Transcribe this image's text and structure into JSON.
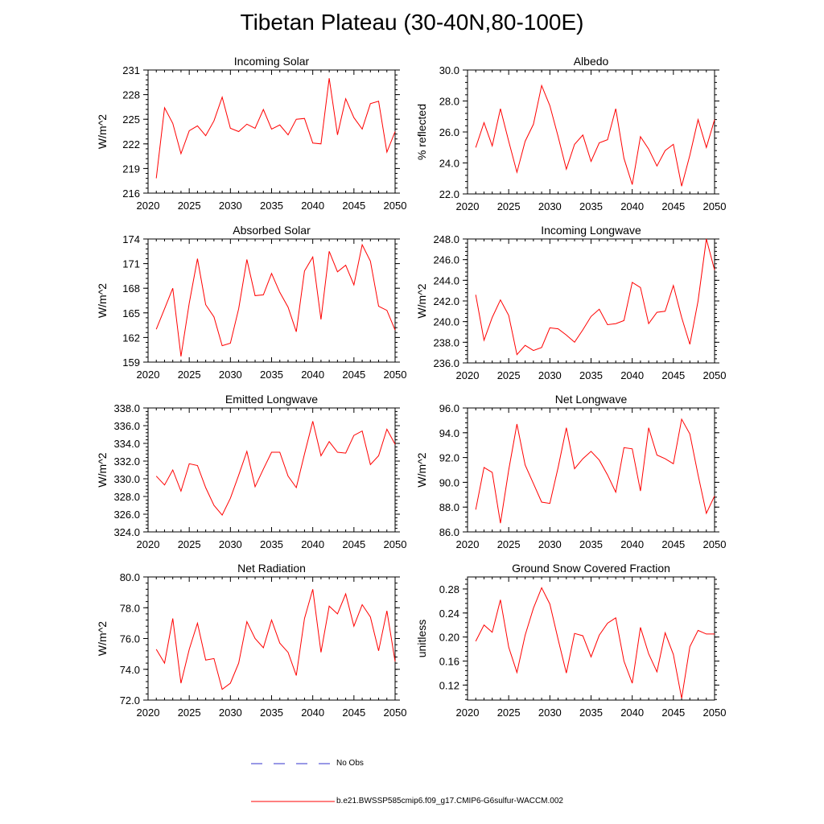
{
  "figure": {
    "title": "Tibetan Plateau (30-40N,80-100E)",
    "legend": [
      {
        "label": "No Obs",
        "color": "#3333cc",
        "style": "dashed"
      },
      {
        "label": "b.e21.BWSSP585cmip6.f09_g17.CMIP6-G6sulfur-WACCM.002",
        "color": "#ff0000",
        "style": "solid"
      }
    ]
  },
  "chart_data": [
    {
      "type": "line",
      "title": "Incoming Solar",
      "ylabel": "W/m^2",
      "xlim": [
        2020,
        2050
      ],
      "ylim": [
        216,
        231
      ],
      "yticks": [
        "216",
        "219",
        "222",
        "225",
        "228",
        "231"
      ],
      "xticks": [
        "2020",
        "2025",
        "2030",
        "2035",
        "2040",
        "2045",
        "2050"
      ],
      "x": [
        2021,
        2022,
        2023,
        2024,
        2025,
        2026,
        2027,
        2028,
        2029,
        2030,
        2031,
        2032,
        2033,
        2034,
        2035,
        2036,
        2037,
        2038,
        2039,
        2040,
        2041,
        2042,
        2043,
        2044,
        2045,
        2046,
        2047,
        2048,
        2049,
        2050
      ],
      "series": [
        {
          "color": "#ff0000",
          "values": [
            217.8,
            226.4,
            224.5,
            220.8,
            223.6,
            224.2,
            223.0,
            224.8,
            227.7,
            223.9,
            223.5,
            224.4,
            223.9,
            226.2,
            223.8,
            224.3,
            223.1,
            225.0,
            225.1,
            222.1,
            222.0,
            230.0,
            223.1,
            227.5,
            225.2,
            223.8,
            226.9,
            227.2,
            221.0,
            223.5
          ],
          "color_hex": "#ff0000"
        }
      ]
    },
    {
      "type": "line",
      "title": "Albedo",
      "ylabel": "% reflected",
      "xlim": [
        2020,
        2050
      ],
      "ylim": [
        22.0,
        30.0
      ],
      "yticks": [
        "22.0",
        "24.0",
        "26.0",
        "28.0",
        "30.0"
      ],
      "xticks": [
        "2020",
        "2025",
        "2030",
        "2035",
        "2040",
        "2045",
        "2050"
      ],
      "x": [
        2021,
        2022,
        2023,
        2024,
        2025,
        2026,
        2027,
        2028,
        2029,
        2030,
        2031,
        2032,
        2033,
        2034,
        2035,
        2036,
        2037,
        2038,
        2039,
        2040,
        2041,
        2042,
        2043,
        2044,
        2045,
        2046,
        2047,
        2048,
        2049,
        2050
      ],
      "series": [
        {
          "color": "#ff0000",
          "values": [
            25.0,
            26.6,
            25.1,
            27.5,
            25.4,
            23.4,
            25.4,
            26.5,
            29.0,
            27.7,
            25.7,
            23.6,
            25.2,
            25.8,
            24.1,
            25.3,
            25.5,
            27.5,
            24.3,
            22.6,
            25.7,
            24.9,
            23.8,
            24.8,
            25.2,
            22.5,
            24.5,
            26.8,
            25.0,
            26.8
          ]
        }
      ]
    },
    {
      "type": "line",
      "title": "Absorbed Solar",
      "ylabel": "W/m^2",
      "xlim": [
        2020,
        2050
      ],
      "ylim": [
        159,
        174
      ],
      "yticks": [
        "159",
        "162",
        "165",
        "168",
        "171",
        "174"
      ],
      "xticks": [
        "2020",
        "2025",
        "2030",
        "2035",
        "2040",
        "2045",
        "2050"
      ],
      "x": [
        2021,
        2022,
        2023,
        2024,
        2025,
        2026,
        2027,
        2028,
        2029,
        2030,
        2031,
        2032,
        2033,
        2034,
        2035,
        2036,
        2037,
        2038,
        2039,
        2040,
        2041,
        2042,
        2043,
        2044,
        2045,
        2046,
        2047,
        2048,
        2049,
        2050
      ],
      "series": [
        {
          "color": "#ff0000",
          "values": [
            163.0,
            165.5,
            168.0,
            159.7,
            166.2,
            171.6,
            166.0,
            164.5,
            161.0,
            161.3,
            165.5,
            171.5,
            167.1,
            167.2,
            169.8,
            167.5,
            165.7,
            162.7,
            170.1,
            171.8,
            164.2,
            172.5,
            170.0,
            170.8,
            168.4,
            173.3,
            171.3,
            165.8,
            165.3,
            162.9
          ]
        }
      ]
    },
    {
      "type": "line",
      "title": "Incoming Longwave",
      "ylabel": "W/m^2",
      "xlim": [
        2020,
        2050
      ],
      "ylim": [
        236.0,
        248.0
      ],
      "yticks": [
        "236.0",
        "238.0",
        "240.0",
        "242.0",
        "244.0",
        "246.0",
        "248.0"
      ],
      "xticks": [
        "2020",
        "2025",
        "2030",
        "2035",
        "2040",
        "2045",
        "2050"
      ],
      "x": [
        2021,
        2022,
        2023,
        2024,
        2025,
        2026,
        2027,
        2028,
        2029,
        2030,
        2031,
        2032,
        2033,
        2034,
        2035,
        2036,
        2037,
        2038,
        2039,
        2040,
        2041,
        2042,
        2043,
        2044,
        2045,
        2046,
        2047,
        2048,
        2049,
        2050
      ],
      "series": [
        {
          "color": "#ff0000",
          "values": [
            242.6,
            238.2,
            240.4,
            242.1,
            240.6,
            236.8,
            237.7,
            237.2,
            237.5,
            239.4,
            239.3,
            238.7,
            238.0,
            239.2,
            240.5,
            241.2,
            239.7,
            239.8,
            240.1,
            243.8,
            243.3,
            239.8,
            240.9,
            241.0,
            243.5,
            240.4,
            237.8,
            242.0,
            248.0,
            245.0
          ]
        }
      ]
    },
    {
      "type": "line",
      "title": "Emitted Longwave",
      "ylabel": "W/m^2",
      "xlim": [
        2020,
        2050
      ],
      "ylim": [
        324.0,
        338.0
      ],
      "yticks": [
        "324.0",
        "326.0",
        "328.0",
        "330.0",
        "332.0",
        "334.0",
        "336.0",
        "338.0"
      ],
      "xticks": [
        "2020",
        "2025",
        "2030",
        "2035",
        "2040",
        "2045",
        "2050"
      ],
      "x": [
        2021,
        2022,
        2023,
        2024,
        2025,
        2026,
        2027,
        2028,
        2029,
        2030,
        2031,
        2032,
        2033,
        2034,
        2035,
        2036,
        2037,
        2038,
        2039,
        2040,
        2041,
        2042,
        2043,
        2044,
        2045,
        2046,
        2047,
        2048,
        2049,
        2050
      ],
      "series": [
        {
          "color": "#ff0000",
          "values": [
            330.3,
            329.3,
            331.0,
            328.6,
            331.7,
            331.5,
            329.0,
            327.0,
            325.9,
            327.8,
            330.4,
            333.1,
            329.1,
            331.1,
            333.0,
            333.0,
            330.3,
            329.0,
            332.8,
            336.5,
            332.6,
            334.2,
            333.0,
            332.9,
            334.9,
            335.4,
            331.6,
            332.6,
            335.6,
            333.9
          ]
        }
      ]
    },
    {
      "type": "line",
      "title": "Net Longwave",
      "ylabel": "W/m^2",
      "xlim": [
        2020,
        2050
      ],
      "ylim": [
        86.0,
        96.0
      ],
      "yticks": [
        "86.0",
        "88.0",
        "90.0",
        "92.0",
        "94.0",
        "96.0"
      ],
      "xticks": [
        "2020",
        "2025",
        "2030",
        "2035",
        "2040",
        "2045",
        "2050"
      ],
      "x": [
        2021,
        2022,
        2023,
        2024,
        2025,
        2026,
        2027,
        2028,
        2029,
        2030,
        2031,
        2032,
        2033,
        2034,
        2035,
        2036,
        2037,
        2038,
        2039,
        2040,
        2041,
        2042,
        2043,
        2044,
        2045,
        2046,
        2047,
        2048,
        2049,
        2050
      ],
      "series": [
        {
          "color": "#ff0000",
          "values": [
            87.8,
            91.2,
            90.8,
            86.7,
            91.0,
            94.7,
            91.4,
            89.9,
            88.4,
            88.3,
            91.2,
            94.4,
            91.1,
            91.9,
            92.5,
            91.8,
            90.6,
            89.2,
            92.8,
            92.7,
            89.3,
            94.4,
            92.2,
            91.9,
            91.5,
            95.1,
            93.9,
            90.6,
            87.5,
            88.9
          ]
        }
      ]
    },
    {
      "type": "line",
      "title": "Net Radiation",
      "ylabel": "W/m^2",
      "xlim": [
        2020,
        2050
      ],
      "ylim": [
        72.0,
        80.0
      ],
      "yticks": [
        "72.0",
        "74.0",
        "76.0",
        "78.0",
        "80.0"
      ],
      "xticks": [
        "2020",
        "2025",
        "2030",
        "2035",
        "2040",
        "2045",
        "2050"
      ],
      "x": [
        2021,
        2022,
        2023,
        2024,
        2025,
        2026,
        2027,
        2028,
        2029,
        2030,
        2031,
        2032,
        2033,
        2034,
        2035,
        2036,
        2037,
        2038,
        2039,
        2040,
        2041,
        2042,
        2043,
        2044,
        2045,
        2046,
        2047,
        2048,
        2049,
        2050
      ],
      "series": [
        {
          "color": "#ff0000",
          "values": [
            75.3,
            74.4,
            77.3,
            73.1,
            75.3,
            77.0,
            74.6,
            74.7,
            72.7,
            73.1,
            74.4,
            77.1,
            76.0,
            75.4,
            77.2,
            75.7,
            75.1,
            73.6,
            77.3,
            79.2,
            75.1,
            78.1,
            77.6,
            78.9,
            76.8,
            78.2,
            77.4,
            75.2,
            77.8,
            74.5
          ]
        }
      ]
    },
    {
      "type": "line",
      "title": "Ground Snow Covered Fraction",
      "ylabel": "unitless",
      "xlim": [
        2020,
        2050
      ],
      "ylim": [
        0.095,
        0.3
      ],
      "yticks": [
        "0.12",
        "0.16",
        "0.20",
        "0.24",
        "0.28"
      ],
      "ytick_values": [
        0.12,
        0.16,
        0.2,
        0.24,
        0.28
      ],
      "xticks": [
        "2020",
        "2025",
        "2030",
        "2035",
        "2040",
        "2045",
        "2050"
      ],
      "x": [
        2021,
        2022,
        2023,
        2024,
        2025,
        2026,
        2027,
        2028,
        2029,
        2030,
        2031,
        2032,
        2033,
        2034,
        2035,
        2036,
        2037,
        2038,
        2039,
        2040,
        2041,
        2042,
        2043,
        2044,
        2045,
        2046,
        2047,
        2048,
        2049,
        2050
      ],
      "series": [
        {
          "color": "#ff0000",
          "values": [
            0.193,
            0.22,
            0.208,
            0.262,
            0.183,
            0.141,
            0.203,
            0.248,
            0.282,
            0.255,
            0.196,
            0.14,
            0.206,
            0.202,
            0.167,
            0.203,
            0.223,
            0.232,
            0.16,
            0.123,
            0.216,
            0.172,
            0.142,
            0.207,
            0.171,
            0.098,
            0.184,
            0.211,
            0.205,
            0.205
          ]
        }
      ]
    }
  ]
}
